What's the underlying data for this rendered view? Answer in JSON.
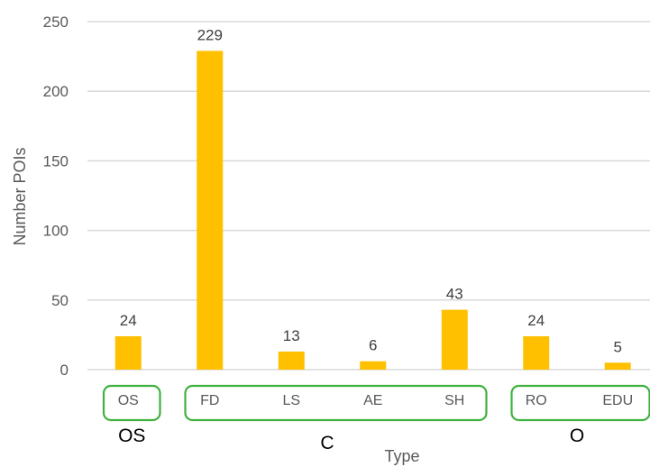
{
  "chart_data": {
    "type": "bar",
    "categories": [
      "OS",
      "FD",
      "LS",
      "AE",
      "SH",
      "RO",
      "EDU"
    ],
    "values": [
      24,
      229,
      13,
      6,
      43,
      24,
      5
    ],
    "data_labels": [
      "24",
      "229",
      "13",
      "6",
      "43",
      "24",
      "5"
    ],
    "xlabel": "Type",
    "ylabel": "Number POIs",
    "ylim": [
      0,
      250
    ],
    "yticks": [
      "0",
      "50",
      "100",
      "150",
      "200",
      "250"
    ],
    "grid": true,
    "legend": "none",
    "bar_color": "#FFC000",
    "grid_color": "#D9D9D9",
    "group_box_color": "#3FB23F",
    "groups": [
      {
        "label": "OS",
        "categories": [
          "OS"
        ]
      },
      {
        "label": "C",
        "categories": [
          "FD",
          "LS",
          "AE",
          "SH"
        ]
      },
      {
        "label": "O",
        "categories": [
          "RO",
          "EDU"
        ]
      }
    ]
  }
}
